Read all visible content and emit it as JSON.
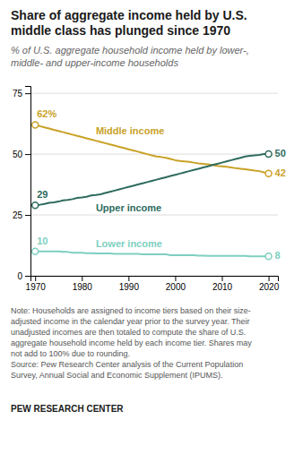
{
  "chart_data": {
    "type": "line",
    "title": "Share of aggregate income held by U.S.\nmiddle class has plunged since 1970",
    "subtitle": "% of U.S. aggregate household income held by lower-,\nmiddle- and upper-income households",
    "annotations": [
      "Note: Households are assigned to income tiers based on their size-\nadjusted income in the calendar year prior to the survey year. Their\nunadjusted incomes are then totaled to compute the share of U.S.\naggregate household income held by each income tier. Shares may\nnot add to 100% due to rounding.\nSource: Pew Research Center analysis of the Current Population\nSurvey, Annual Social and Economic Supplement (IPUMS).",
      "PEW RESEARCH CENTER"
    ],
    "x": [
      1970,
      1971,
      1972,
      1973,
      1974,
      1975,
      1976,
      1977,
      1978,
      1979,
      1980,
      1981,
      1982,
      1983,
      1984,
      1985,
      1986,
      1987,
      1988,
      1989,
      1990,
      1991,
      1992,
      1993,
      1994,
      1995,
      1996,
      1997,
      1998,
      1999,
      2000,
      2001,
      2002,
      2003,
      2004,
      2005,
      2006,
      2007,
      2008,
      2009,
      2010,
      2011,
      2012,
      2013,
      2014,
      2015,
      2016,
      2017,
      2018,
      2019,
      2020
    ],
    "series": [
      {
        "name": "Middle income",
        "color": "#C9A227",
        "values": [
          62,
          61.5,
          61,
          60.5,
          60,
          59.5,
          59,
          58.5,
          58,
          57.5,
          57,
          56.5,
          56,
          55.5,
          55,
          54.5,
          54,
          53.5,
          53,
          52.5,
          52,
          51.5,
          51,
          50.5,
          50,
          49.5,
          49,
          48.8,
          48.5,
          48,
          47.5,
          47.2,
          47,
          46.8,
          46.5,
          46.2,
          46,
          45.8,
          45.5,
          45.2,
          45,
          44.8,
          44.5,
          44.2,
          44,
          43.8,
          43.5,
          43.2,
          43,
          42.5,
          42
        ],
        "value_labels": [
          "62%",
          null,
          null,
          null,
          null,
          null,
          null,
          null,
          null,
          null,
          null,
          null,
          null,
          null,
          null,
          null,
          null,
          null,
          null,
          null,
          null,
          null,
          null,
          null,
          null,
          null,
          null,
          null,
          null,
          null,
          null,
          null,
          null,
          null,
          null,
          null,
          null,
          null,
          null,
          null,
          null,
          null,
          null,
          null,
          null,
          null,
          null,
          null,
          null,
          null,
          "42"
        ]
      },
      {
        "name": "Upper income",
        "color": "#2E6B5E",
        "values": [
          29,
          29.2,
          29.5,
          30,
          30.2,
          30.5,
          31,
          31.2,
          31.5,
          32,
          32.2,
          32.5,
          33,
          33.2,
          33.5,
          34,
          34.5,
          35,
          35.5,
          36,
          36.5,
          37,
          37.5,
          38,
          38.5,
          39,
          39.5,
          40,
          40.5,
          41,
          41.5,
          42,
          42.5,
          43,
          43.5,
          44,
          44.5,
          45,
          45.5,
          46,
          46.5,
          47,
          47.5,
          48,
          48.5,
          49,
          49.3,
          49.5,
          49.7,
          50,
          50
        ],
        "value_labels": [
          "29",
          null,
          null,
          null,
          null,
          null,
          null,
          null,
          null,
          null,
          null,
          null,
          null,
          null,
          null,
          null,
          null,
          null,
          null,
          null,
          null,
          null,
          null,
          null,
          null,
          null,
          null,
          null,
          null,
          null,
          null,
          null,
          null,
          null,
          null,
          null,
          null,
          null,
          null,
          null,
          null,
          null,
          null,
          null,
          null,
          null,
          null,
          null,
          null,
          null,
          "50"
        ]
      },
      {
        "name": "Lower income",
        "color": "#7ECFC0",
        "values": [
          10,
          10,
          10,
          10,
          10,
          10,
          9.8,
          9.8,
          9.5,
          9.5,
          9.5,
          9.3,
          9.3,
          9.2,
          9.2,
          9.2,
          9.2,
          9,
          9,
          9,
          9,
          9,
          9,
          8.8,
          8.8,
          8.8,
          8.8,
          8.8,
          8.8,
          8.5,
          8.5,
          8.5,
          8.5,
          8.5,
          8.5,
          8.3,
          8.3,
          8.2,
          8.2,
          8.2,
          8.2,
          8.2,
          8.2,
          8.2,
          8.2,
          8.2,
          8,
          8,
          8,
          8,
          8
        ],
        "value_labels": [
          "10",
          null,
          null,
          null,
          null,
          null,
          null,
          null,
          null,
          null,
          null,
          null,
          null,
          null,
          null,
          null,
          null,
          null,
          null,
          null,
          null,
          null,
          null,
          null,
          null,
          null,
          null,
          null,
          null,
          null,
          null,
          null,
          null,
          null,
          null,
          null,
          null,
          null,
          null,
          null,
          null,
          null,
          null,
          null,
          null,
          null,
          null,
          null,
          null,
          null,
          "8"
        ]
      }
    ],
    "xlim": [
      1969,
      2022
    ],
    "xticks": [
      1970,
      1980,
      1990,
      2000,
      2010,
      2020
    ],
    "ylim": [
      0,
      78
    ],
    "yticks": [
      0,
      25,
      50,
      75
    ],
    "grid": true,
    "data_labels": true
  }
}
